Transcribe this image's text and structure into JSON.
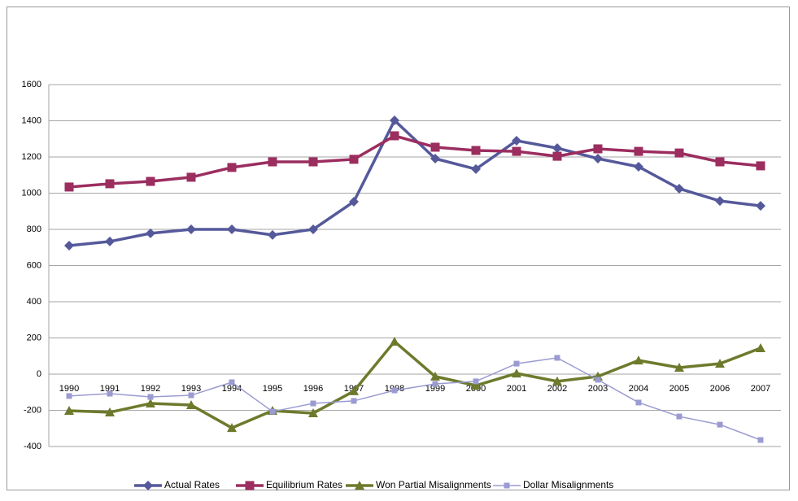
{
  "chart_data": {
    "type": "line",
    "categories": [
      "1990",
      "1991",
      "1992",
      "1993",
      "1994",
      "1995",
      "1996",
      "1997",
      "1998",
      "1999",
      "2000",
      "2001",
      "2002",
      "2003",
      "2004",
      "2005",
      "2006",
      "2007"
    ],
    "series": [
      {
        "name": "Actual Rates",
        "color": "#55599a",
        "marker": "diamond",
        "values": [
          710,
          733,
          778,
          800,
          800,
          769,
          800,
          953,
          1402,
          1191,
          1133,
          1290,
          1249,
          1191,
          1146,
          1025,
          957,
          930
        ]
      },
      {
        "name": "Equilibrium Rates",
        "color": "#9b2d5f",
        "marker": "square",
        "values": [
          1034,
          1052,
          1065,
          1088,
          1142,
          1173,
          1173,
          1187,
          1317,
          1254,
          1236,
          1231,
          1204,
          1245,
          1231,
          1222,
          1173,
          1151
        ]
      },
      {
        "name": "Won Partial Misalignments",
        "color": "#6d7a2c",
        "marker": "triangle",
        "values": [
          -202,
          -211,
          -162,
          -171,
          -297,
          -202,
          -216,
          -94,
          180,
          -13,
          -63,
          4,
          -40,
          -13,
          76,
          36,
          58,
          144
        ]
      },
      {
        "name": "Dollar Misalignments",
        "color": "#9b9bd2",
        "marker": "small-square",
        "values": [
          -121,
          -108,
          -126,
          -117,
          -45,
          -207,
          -162,
          -148,
          -90,
          -54,
          -40,
          58,
          90,
          -31,
          -157,
          -234,
          -279,
          -364
        ]
      }
    ],
    "ylim": [
      -400,
      1600
    ],
    "yticks": [
      -400,
      -200,
      0,
      200,
      400,
      600,
      800,
      1000,
      1200,
      1400,
      1600
    ],
    "grid": true,
    "legend": "bottom"
  }
}
